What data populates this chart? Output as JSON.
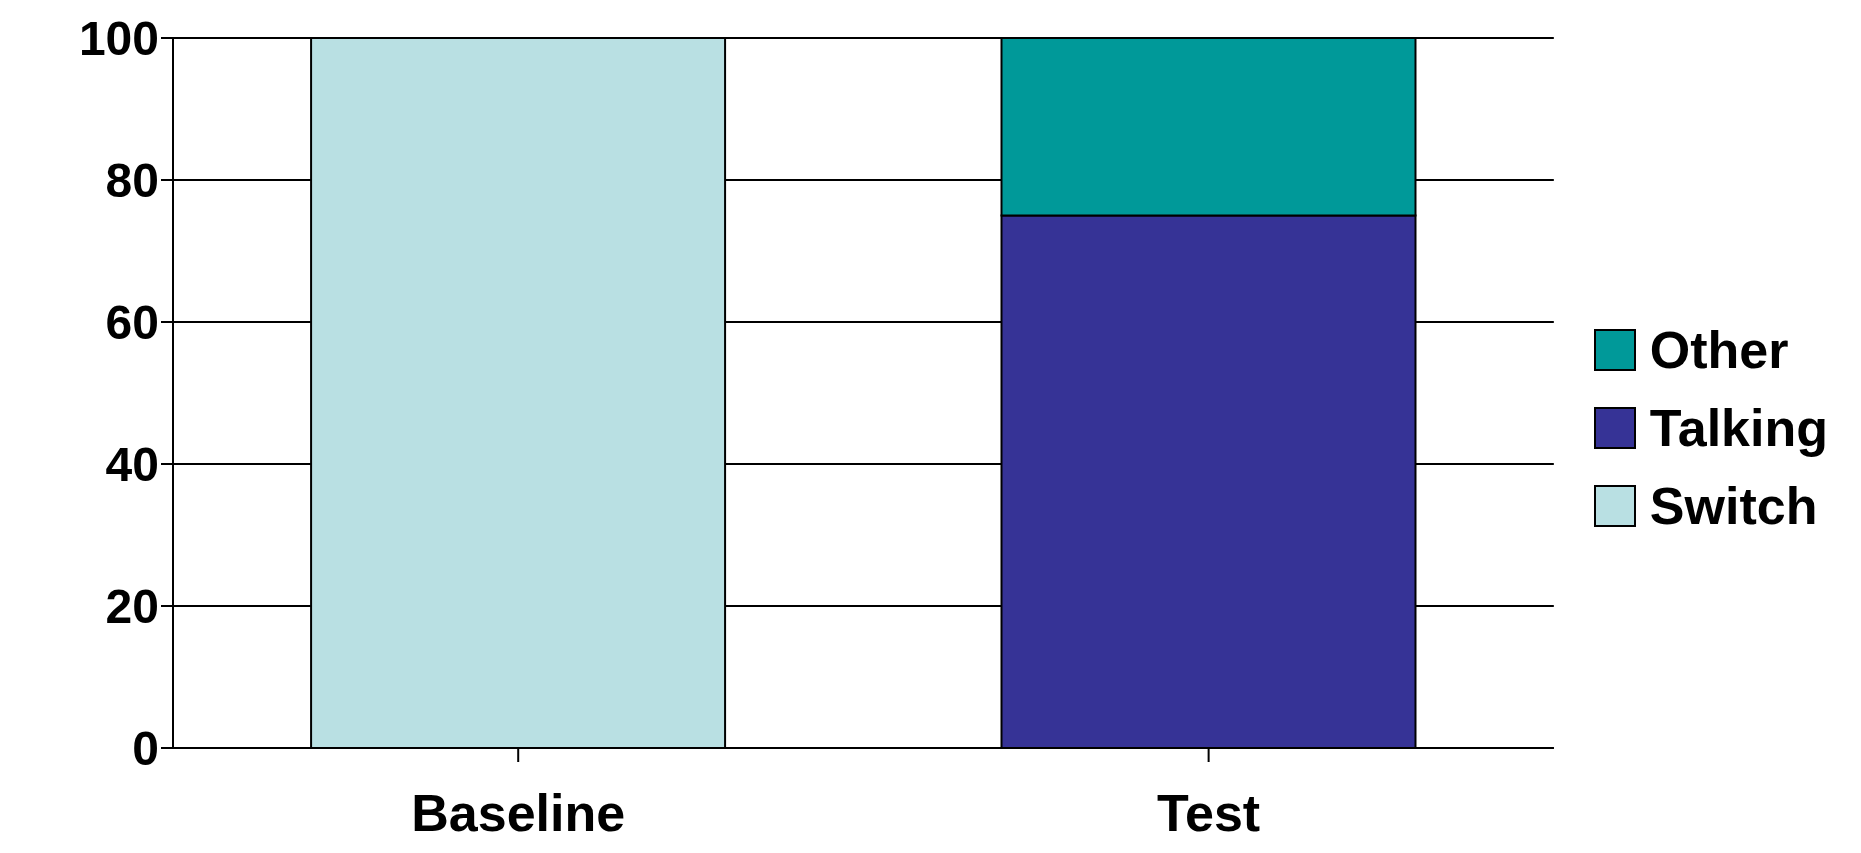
{
  "chart_data": {
    "type": "bar",
    "categories": [
      "Baseline",
      "Test"
    ],
    "stacked": true,
    "series": [
      {
        "name": "Switch",
        "color": "#b9e0e3",
        "values": [
          100,
          0
        ]
      },
      {
        "name": "Talking",
        "color": "#363396",
        "values": [
          0,
          75
        ]
      },
      {
        "name": "Other",
        "color": "#009999",
        "values": [
          0,
          25
        ]
      }
    ],
    "ylim": [
      0,
      100
    ],
    "yticks": [
      0,
      20,
      40,
      60,
      80,
      100
    ],
    "grid": "y",
    "legend": "right"
  }
}
